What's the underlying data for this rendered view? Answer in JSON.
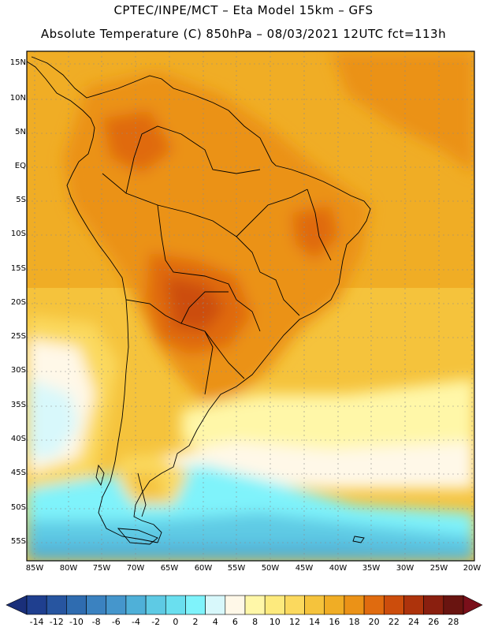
{
  "header": {
    "line1": "CPTEC/INPE/MCT –  Eta Model 15km – GFS",
    "line2": "Absolute Temperature (C) 850hPa – 08/03/2021 12UTC fct=113h"
  },
  "map": {
    "lat_labels": [
      "15N",
      "10N",
      "5N",
      "EQ",
      "5S",
      "10S",
      "15S",
      "20S",
      "25S",
      "30S",
      "35S",
      "40S",
      "45S",
      "50S",
      "55S"
    ],
    "lon_labels": [
      "85W",
      "80W",
      "75W",
      "70W",
      "65W",
      "60W",
      "55W",
      "50W",
      "45W",
      "40W",
      "35W",
      "30W",
      "25W",
      "20W"
    ]
  },
  "colorbar": {
    "labels": [
      "-14",
      "-12",
      "-10",
      "-8",
      "-6",
      "-4",
      "-2",
      "0",
      "2",
      "4",
      "6",
      "8",
      "10",
      "12",
      "14",
      "16",
      "18",
      "20",
      "22",
      "24",
      "26",
      "28"
    ],
    "colors": [
      "#1f3f8f",
      "#2755a0",
      "#2f6cb0",
      "#3b82c0",
      "#4596cc",
      "#4fb0d8",
      "#5ecae4",
      "#6adfef",
      "#7ff3fb",
      "#d8f8fb",
      "#fff8e8",
      "#fff7a8",
      "#fdea7d",
      "#fbd95e",
      "#f5c33c",
      "#f0ad25",
      "#eb9217",
      "#e06b0f",
      "#cc4d0c",
      "#ad330c",
      "#8a1f0f",
      "#691410"
    ],
    "low_color": "#1a2f7a",
    "high_color": "#7a0f1a"
  }
}
